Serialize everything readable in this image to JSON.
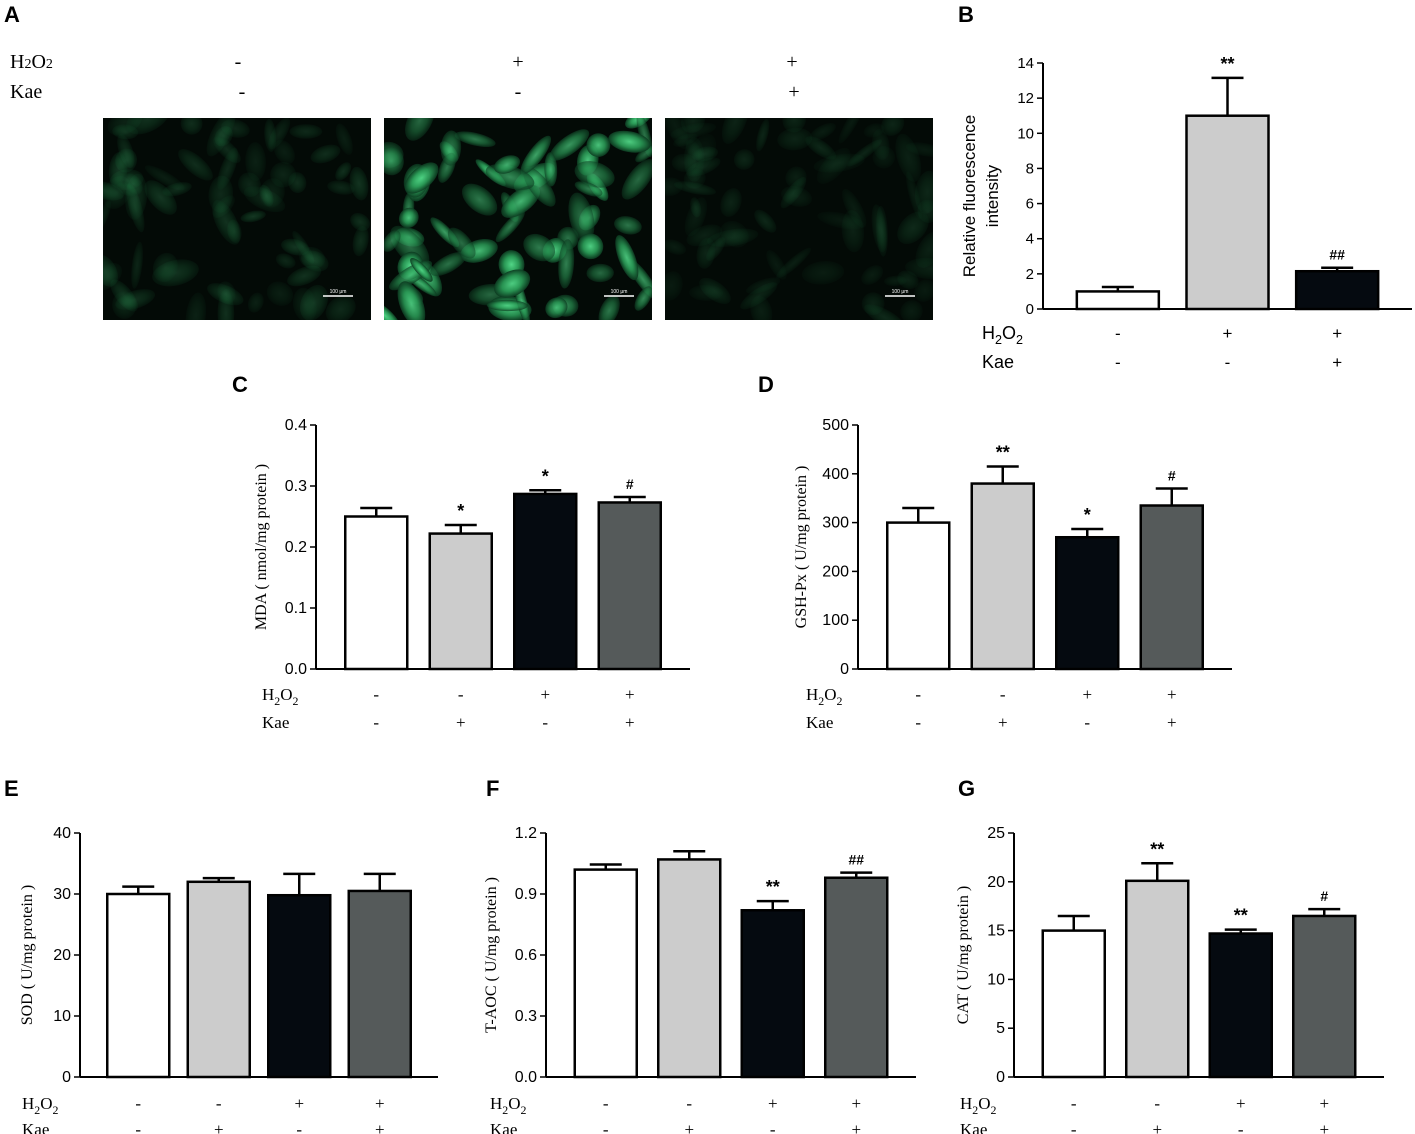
{
  "panels": {
    "a": {
      "label": "A"
    },
    "b": {
      "label": "B"
    },
    "c": {
      "label": "C"
    },
    "d": {
      "label": "D"
    },
    "e": {
      "label": "E"
    },
    "f": {
      "label": "F"
    },
    "g": {
      "label": "G"
    }
  },
  "microscopy": {
    "h2o2_label": "H2O2",
    "kae_label": "Kae",
    "h2o2_signs": [
      "-",
      "+",
      "+"
    ],
    "kae_signs": [
      "-",
      "-",
      "+"
    ],
    "scale_bar": "100 μm",
    "image_brightness": [
      0.22,
      1.0,
      0.15
    ]
  },
  "colors": {
    "group1": "#ffffff",
    "group2": "#cccccc",
    "group3": "#050a10",
    "group4": "#555a5a",
    "fluor_dim": "#0e3a22",
    "fluor_bright": "#3fbf6f"
  },
  "chart_data": [
    {
      "id": "B",
      "type": "bar",
      "ylabel": "Relative fluorescence intensity",
      "ylim": [
        0,
        14
      ],
      "yticks": [
        "0",
        "2",
        "4",
        "6",
        "8",
        "10",
        "12",
        "14"
      ],
      "categories": [
        "-/-",
        "+/-",
        "+/+"
      ],
      "h2o2_signs": [
        "-",
        "+",
        "+"
      ],
      "kae_signs": [
        "-",
        "-",
        "+"
      ],
      "values": [
        1.0,
        11.0,
        2.15
      ],
      "errors": [
        0.25,
        2.15,
        0.2
      ],
      "annotations": [
        "",
        "**",
        "##"
      ],
      "bar_colors": [
        "#ffffff",
        "#cccccc",
        "#050a10"
      ]
    },
    {
      "id": "C",
      "type": "bar",
      "ylabel": "MDA ( nmol/mg protein )",
      "ylim": [
        0,
        0.4
      ],
      "yticks": [
        "0.0",
        "0.1",
        "0.2",
        "0.3",
        "0.4"
      ],
      "categories": [
        "-/-",
        "-/+",
        "+/-",
        "+/+"
      ],
      "h2o2_signs": [
        "-",
        "-",
        "+",
        "+"
      ],
      "kae_signs": [
        "-",
        "+",
        "-",
        "+"
      ],
      "values": [
        0.25,
        0.222,
        0.287,
        0.273
      ],
      "errors": [
        0.014,
        0.014,
        0.006,
        0.009
      ],
      "annotations": [
        "",
        "*",
        "*",
        "#"
      ],
      "bar_colors": [
        "#ffffff",
        "#cccccc",
        "#050a10",
        "#555a5a"
      ]
    },
    {
      "id": "D",
      "type": "bar",
      "ylabel": "GSH-Px ( U/mg protein )",
      "ylim": [
        0,
        500
      ],
      "yticks": [
        "0",
        "100",
        "200",
        "300",
        "400",
        "500"
      ],
      "categories": [
        "-/-",
        "-/+",
        "+/-",
        "+/+"
      ],
      "h2o2_signs": [
        "-",
        "-",
        "+",
        "+"
      ],
      "kae_signs": [
        "-",
        "+",
        "-",
        "+"
      ],
      "values": [
        300,
        380,
        270,
        335
      ],
      "errors": [
        30,
        35,
        17,
        35
      ],
      "annotations": [
        "",
        "**",
        "*",
        "#"
      ],
      "bar_colors": [
        "#ffffff",
        "#cccccc",
        "#050a10",
        "#555a5a"
      ]
    },
    {
      "id": "E",
      "type": "bar",
      "ylabel": "SOD ( U/mg protein )",
      "ylim": [
        0,
        40
      ],
      "yticks": [
        "0",
        "10",
        "20",
        "30",
        "40"
      ],
      "categories": [
        "-/-",
        "-/+",
        "+/-",
        "+/+"
      ],
      "h2o2_signs": [
        "-",
        "-",
        "+",
        "+"
      ],
      "kae_signs": [
        "-",
        "+",
        "-",
        "+"
      ],
      "values": [
        30,
        32,
        29.8,
        30.5
      ],
      "errors": [
        1.2,
        0.6,
        3.5,
        2.8
      ],
      "annotations": [
        "",
        "",
        "",
        ""
      ],
      "bar_colors": [
        "#ffffff",
        "#cccccc",
        "#050a10",
        "#555a5a"
      ]
    },
    {
      "id": "F",
      "type": "bar",
      "ylabel": "T-AOC ( U/mg protein )",
      "ylim": [
        0,
        1.2
      ],
      "yticks": [
        "0.0",
        "0.3",
        "0.6",
        "0.9",
        "1.2"
      ],
      "categories": [
        "-/-",
        "-/+",
        "+/-",
        "+/+"
      ],
      "h2o2_signs": [
        "-",
        "-",
        "+",
        "+"
      ],
      "kae_signs": [
        "-",
        "+",
        "-",
        "+"
      ],
      "values": [
        1.02,
        1.07,
        0.82,
        0.98
      ],
      "errors": [
        0.025,
        0.04,
        0.045,
        0.025
      ],
      "annotations": [
        "",
        "",
        "**",
        "##"
      ],
      "bar_colors": [
        "#ffffff",
        "#cccccc",
        "#050a10",
        "#555a5a"
      ]
    },
    {
      "id": "G",
      "type": "bar",
      "ylabel": "CAT ( U/mg protein )",
      "ylim": [
        0,
        25
      ],
      "yticks": [
        "0",
        "5",
        "10",
        "15",
        "20",
        "25"
      ],
      "categories": [
        "-/-",
        "-/+",
        "+/-",
        "+/+"
      ],
      "h2o2_signs": [
        "-",
        "-",
        "+",
        "+"
      ],
      "kae_signs": [
        "-",
        "+",
        "-",
        "+"
      ],
      "values": [
        15,
        20.1,
        14.7,
        16.5
      ],
      "errors": [
        1.5,
        1.8,
        0.4,
        0.7
      ],
      "annotations": [
        "",
        "**",
        "**",
        "#"
      ],
      "bar_colors": [
        "#ffffff",
        "#cccccc",
        "#050a10",
        "#555a5a"
      ]
    }
  ]
}
